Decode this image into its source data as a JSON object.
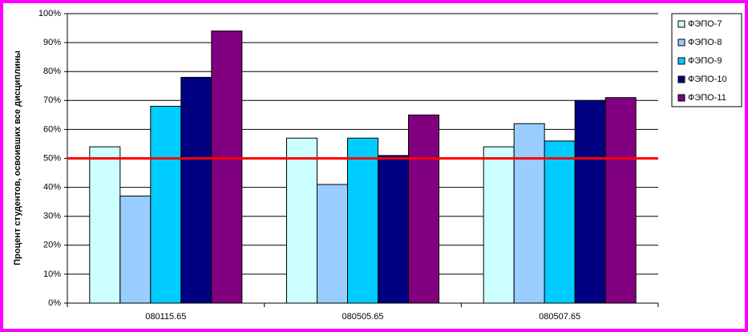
{
  "chart_data": {
    "type": "bar",
    "y_label": "Процент студентов, освоивших все дисциплины",
    "categories": [
      "080115.65",
      "080505.65",
      "080507.65"
    ],
    "series": [
      {
        "name": "ФЭПО-7",
        "color": "#ccffff",
        "values": [
          54,
          57,
          54
        ]
      },
      {
        "name": "ФЭПО-8",
        "color": "#99ccff",
        "values": [
          37,
          41,
          62
        ]
      },
      {
        "name": "ФЭПО-9",
        "color": "#00ccff",
        "values": [
          68,
          57,
          56
        ]
      },
      {
        "name": "ФЭПО-10",
        "color": "#000080",
        "values": [
          78,
          51,
          70
        ]
      },
      {
        "name": "ФЭПО-11",
        "color": "#800080",
        "values": [
          94,
          65,
          71
        ]
      }
    ],
    "ylim": [
      0,
      100
    ],
    "yticks": [
      {
        "value": 0,
        "label": "0%"
      },
      {
        "value": 10,
        "label": "10%"
      },
      {
        "value": 20,
        "label": "20%"
      },
      {
        "value": 30,
        "label": "30%"
      },
      {
        "value": 40,
        "label": "40%"
      },
      {
        "value": 50,
        "label": "50%"
      },
      {
        "value": 60,
        "label": "60%"
      },
      {
        "value": 70,
        "label": "70%"
      },
      {
        "value": 80,
        "label": "80%"
      },
      {
        "value": 90,
        "label": "90%"
      },
      {
        "value": 100,
        "label": "100%"
      }
    ],
    "grid": true,
    "reference_line": {
      "value": 50,
      "color": "#ff0000"
    },
    "legend": "right"
  }
}
